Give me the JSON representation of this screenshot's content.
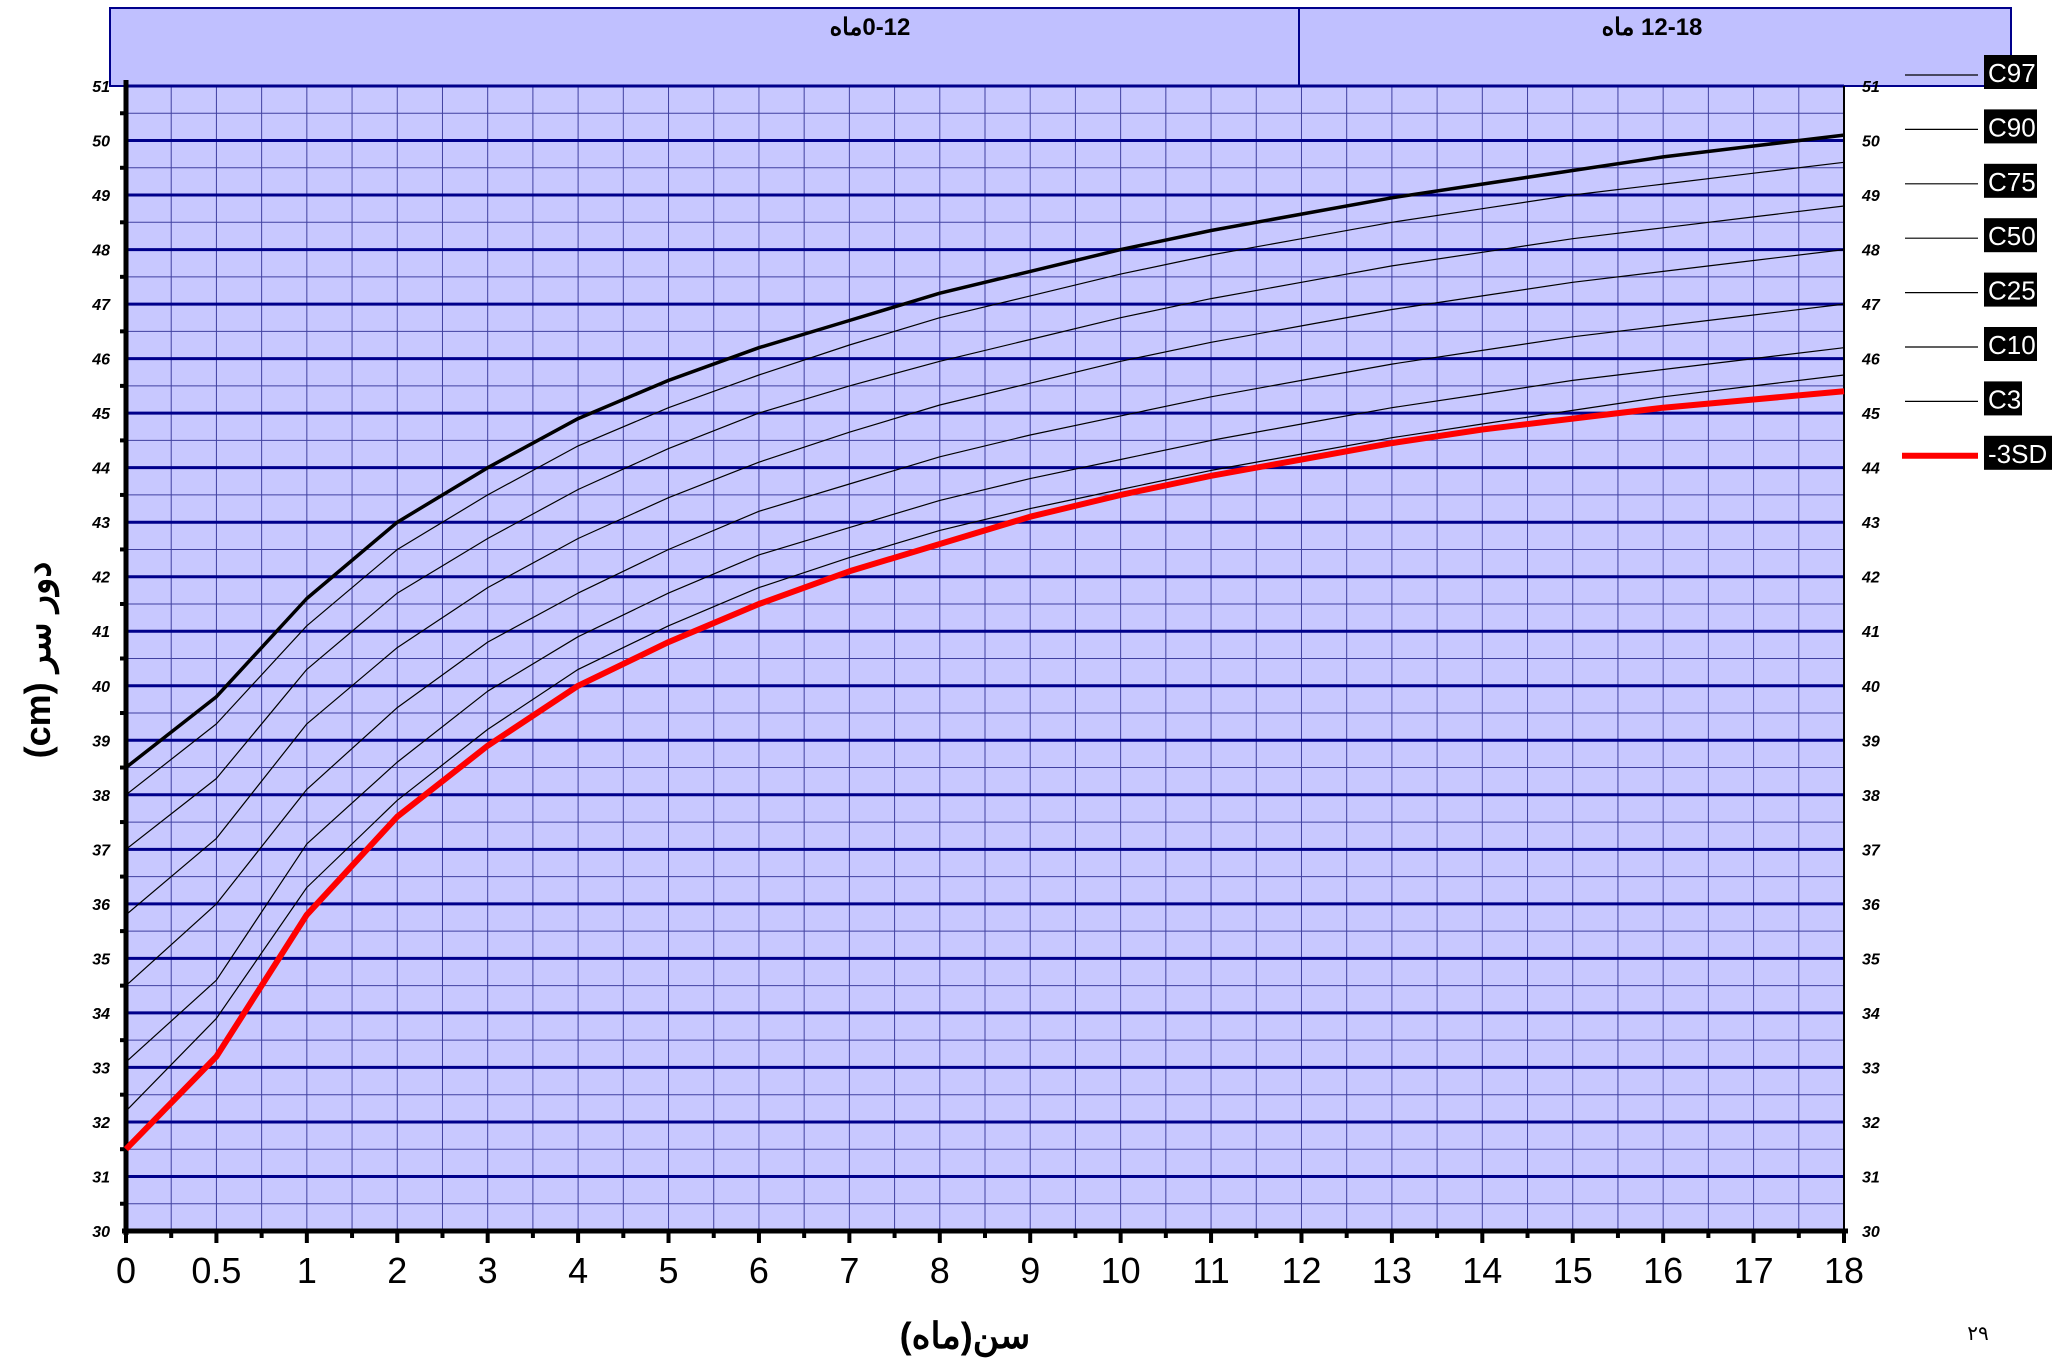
{
  "chart_data": {
    "type": "line",
    "title": "",
    "header_panels": [
      "0-12ماه",
      "12-18 ماه"
    ],
    "xlabel": "سن(ماه)",
    "ylabel": "دور سر (cm)",
    "x": [
      0,
      0.5,
      1,
      2,
      3,
      4,
      5,
      6,
      7,
      8,
      9,
      10,
      11,
      12,
      13,
      14,
      15,
      16,
      17,
      18
    ],
    "x_tick_labels": [
      "0",
      "0.5",
      "1",
      "2",
      "3",
      "4",
      "5",
      "6",
      "7",
      "8",
      "9",
      "10",
      "11",
      "12",
      "13",
      "14",
      "15",
      "16",
      "17",
      "18"
    ],
    "ylim": [
      30,
      51
    ],
    "y_ticks": [
      30,
      31,
      32,
      33,
      34,
      35,
      36,
      37,
      38,
      39,
      40,
      41,
      42,
      43,
      44,
      45,
      46,
      47,
      48,
      49,
      50,
      51
    ],
    "grid": true,
    "legend_position": "right",
    "series": [
      {
        "name": "C97",
        "color": "#000000",
        "bold": true,
        "values": [
          38.5,
          39.8,
          41.6,
          43.0,
          44.0,
          44.9,
          45.6,
          46.2,
          46.7,
          47.2,
          47.6,
          48.0,
          48.35,
          48.65,
          48.95,
          49.2,
          49.45,
          49.7,
          49.9,
          50.1
        ]
      },
      {
        "name": "C90",
        "color": "#000000",
        "values": [
          38.0,
          39.3,
          41.1,
          42.5,
          43.5,
          44.4,
          45.1,
          45.7,
          46.25,
          46.75,
          47.15,
          47.55,
          47.9,
          48.2,
          48.5,
          48.75,
          49.0,
          49.2,
          49.4,
          49.6
        ]
      },
      {
        "name": "C75",
        "color": "#000000",
        "values": [
          37.0,
          38.3,
          40.3,
          41.7,
          42.7,
          43.6,
          44.35,
          45.0,
          45.5,
          45.95,
          46.35,
          46.75,
          47.1,
          47.4,
          47.7,
          47.95,
          48.2,
          48.4,
          48.6,
          48.8
        ]
      },
      {
        "name": "C50",
        "color": "#000000",
        "values": [
          35.8,
          37.2,
          39.3,
          40.7,
          41.8,
          42.7,
          43.45,
          44.1,
          44.65,
          45.15,
          45.55,
          45.95,
          46.3,
          46.6,
          46.9,
          47.15,
          47.4,
          47.6,
          47.8,
          48.0
        ]
      },
      {
        "name": "C25",
        "color": "#000000",
        "values": [
          34.5,
          36.0,
          38.1,
          39.6,
          40.8,
          41.7,
          42.5,
          43.2,
          43.7,
          44.2,
          44.6,
          44.95,
          45.3,
          45.6,
          45.9,
          46.15,
          46.4,
          46.6,
          46.8,
          47.0
        ]
      },
      {
        "name": "C10",
        "color": "#000000",
        "values": [
          33.1,
          34.6,
          37.1,
          38.6,
          39.9,
          40.9,
          41.7,
          42.4,
          42.9,
          43.4,
          43.8,
          44.15,
          44.5,
          44.8,
          45.1,
          45.35,
          45.6,
          45.8,
          46.0,
          46.2
        ]
      },
      {
        "name": "C3",
        "color": "#000000",
        "values": [
          32.2,
          33.9,
          36.3,
          37.9,
          39.2,
          40.3,
          41.1,
          41.8,
          42.35,
          42.85,
          43.25,
          43.6,
          43.95,
          44.25,
          44.55,
          44.8,
          45.05,
          45.3,
          45.5,
          45.7
        ]
      },
      {
        "name": "-3SD",
        "color": "#ff0000",
        "bold": true,
        "values": [
          31.5,
          33.2,
          35.8,
          37.6,
          38.9,
          40.0,
          40.8,
          41.5,
          42.1,
          42.6,
          43.1,
          43.5,
          43.85,
          44.15,
          44.45,
          44.7,
          44.9,
          45.1,
          45.25,
          45.4
        ]
      }
    ]
  },
  "page_number": "۲۹",
  "colors": {
    "plot_background": "#c8c8ff",
    "header_background": "#c0c0ff",
    "grid_major": "#00008b",
    "grid_minor": "#4040a0",
    "legend_box": "#000000",
    "series_highlight": "#ff0000"
  }
}
